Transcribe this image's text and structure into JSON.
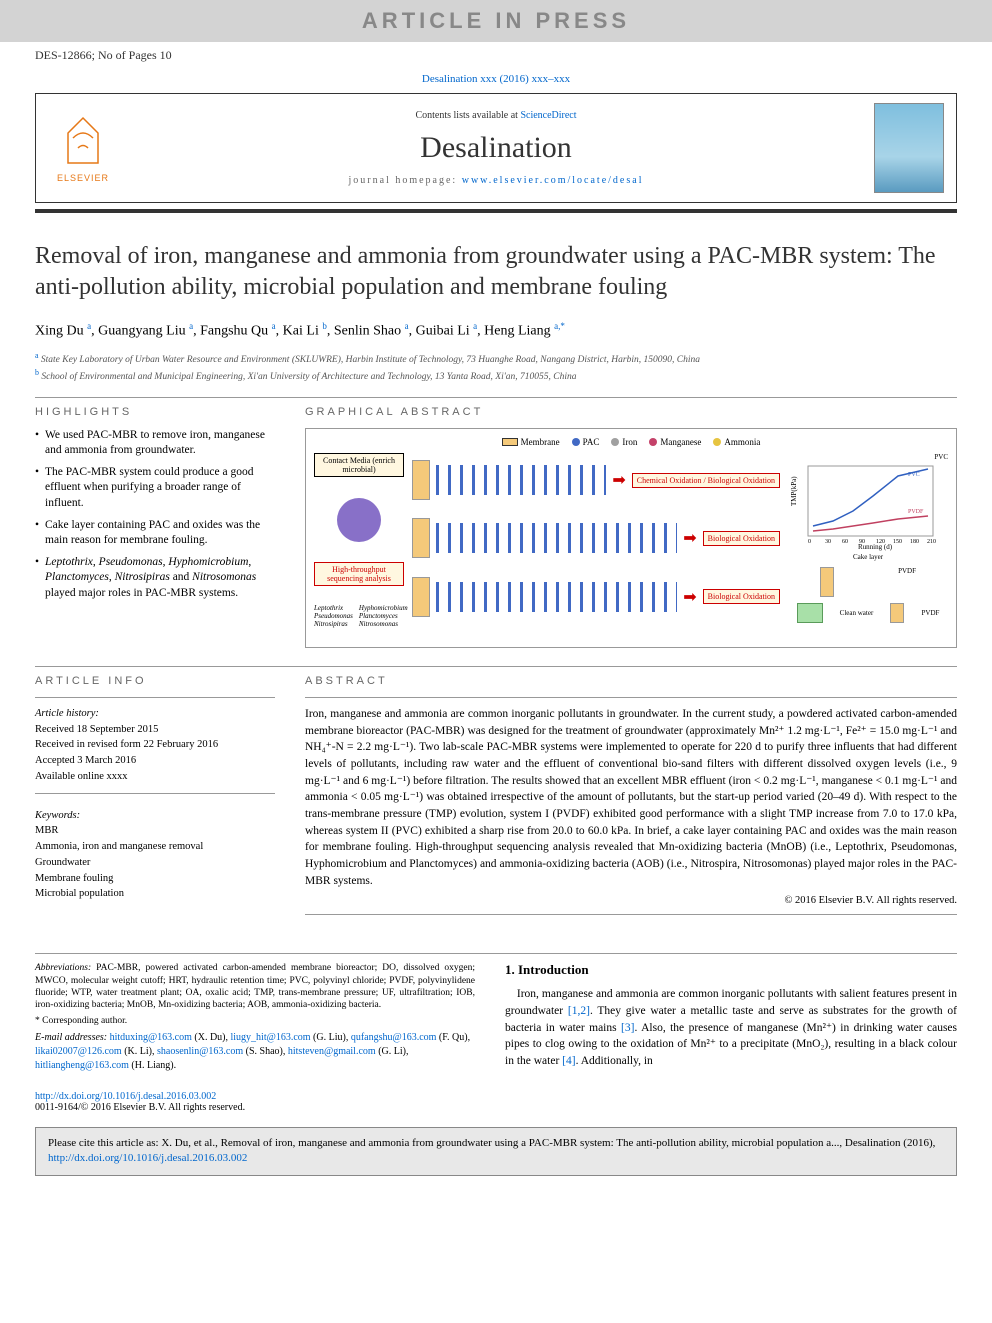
{
  "banner": {
    "text": "ARTICLE IN PRESS",
    "bg": "#d3d3d3",
    "color": "#888888",
    "fontsize": 22
  },
  "doc_id": "DES-12866; No of Pages 10",
  "doi_line": "Desalination xxx (2016) xxx–xxx",
  "header": {
    "contents_prefix": "Contents lists available at ",
    "contents_link": "ScienceDirect",
    "journal": "Desalination",
    "homepage_prefix": "journal homepage: ",
    "homepage_link": "www.elsevier.com/locate/desal",
    "publisher": "ELSEVIER",
    "logo_color": "#e67817",
    "journal_fontsize": 30
  },
  "title": "Removal of iron, manganese and ammonia from groundwater using a PAC-MBR system: The anti-pollution ability, microbial population and membrane fouling",
  "authors_html": "Xing Du <sup>a</sup>, Guangyang Liu <sup>a</sup>, Fangshu Qu <sup>a</sup>, Kai Li <sup>b</sup>, Senlin Shao <sup>a</sup>, Guibai Li <sup>a</sup>, Heng Liang <sup>a,*</sup>",
  "affiliations": {
    "a": "State Key Laboratory of Urban Water Resource and Environment (SKLUWRE), Harbin Institute of Technology, 73 Huanghe Road, Nangang District, Harbin, 150090, China",
    "b": "School of Environmental and Municipal Engineering, Xi'an University of Architecture and Technology, 13 Yanta Road, Xi'an, 710055, China"
  },
  "highlights": {
    "heading": "HIGHLIGHTS",
    "items": [
      "We used PAC-MBR to remove iron, manganese and ammonia from groundwater.",
      "The PAC-MBR system could produce a good effluent when purifying a broader range of influent.",
      "Cake layer containing PAC and oxides was the main reason for membrane fouling.",
      "<em>Leptothrix</em>, <em>Pseudomonas</em>, <em>Hyphomicrobium</em>, <em>Planctomyces</em>, <em>Nitrosipiras</em> and <em>Nitrosomonas</em> played major roles in PAC-MBR systems."
    ]
  },
  "graphical_abstract": {
    "heading": "GRAPHICAL ABSTRACT",
    "legend": [
      {
        "label": "Membrane",
        "color": "#f4c97a",
        "shape": "rect"
      },
      {
        "label": "PAC",
        "color": "#4169c4",
        "shape": "circle"
      },
      {
        "label": "Iron",
        "color": "#a0a0a0",
        "shape": "dot"
      },
      {
        "label": "Manganese",
        "color": "#c44169",
        "shape": "dot"
      },
      {
        "label": "Ammonia",
        "color": "#e6c441",
        "shape": "dot"
      }
    ],
    "left_box1": "Contact Media\n(enrich microbial)",
    "left_box2": "High-throughput\nsequencing analysis",
    "row1": [
      "Chemical Oxidation",
      "Biological Oxidation"
    ],
    "row2": "Biological Oxidation",
    "row3": "Biological Oxidation",
    "right_labels": [
      "PVC",
      "Cake layer",
      "PVDF",
      "Clean water",
      "PVDF"
    ],
    "chart": {
      "type": "line",
      "xlabel": "Running (d)",
      "ylabel": "TMP(kPa)",
      "xlim": [
        0,
        210
      ],
      "ylim": [
        0,
        60
      ],
      "xticks": [
        0,
        30,
        60,
        90,
        120,
        150,
        180,
        210
      ],
      "series": [
        {
          "name": "PVC",
          "color": "#3060c0"
        },
        {
          "name": "PVDF",
          "color": "#c04060"
        }
      ]
    },
    "taxa_left": [
      "Leptothrix",
      "Pseudomonas",
      "Nitrosipiras"
    ],
    "taxa_right": [
      "Hyphomicrobium",
      "Planctomyces",
      "Nitrosomonas"
    ]
  },
  "article_info": {
    "heading": "ARTICLE INFO",
    "history_label": "Article history:",
    "history": [
      "Received 18 September 2015",
      "Received in revised form 22 February 2016",
      "Accepted 3 March 2016",
      "Available online xxxx"
    ],
    "keywords_label": "Keywords:",
    "keywords": [
      "MBR",
      "Ammonia, iron and manganese removal",
      "Groundwater",
      "Membrane fouling",
      "Microbial population"
    ]
  },
  "abstract": {
    "heading": "ABSTRACT",
    "text": "Iron, manganese and ammonia are common inorganic pollutants in groundwater. In the current study, a powdered activated carbon-amended membrane bioreactor (PAC-MBR) was designed for the treatment of groundwater (approximately Mn²⁺ 1.2 mg·L⁻¹, Fe²⁺ = 15.0 mg·L⁻¹ and NH₄⁺-N = 2.2 mg·L⁻¹). Two lab-scale PAC-MBR systems were implemented to operate for 220 d to purify three influents that had different levels of pollutants, including raw water and the effluent of conventional bio-sand filters with different dissolved oxygen levels (i.e., 9 mg·L⁻¹ and 6 mg·L⁻¹) before filtration. The results showed that an excellent MBR effluent (iron < 0.2 mg·L⁻¹, manganese < 0.1 mg·L⁻¹ and ammonia < 0.05 mg·L⁻¹) was obtained irrespective of the amount of pollutants, but the start-up period varied (20–49 d). With respect to the trans-membrane pressure (TMP) evolution, system I (PVDF) exhibited good performance with a slight TMP increase from 7.0 to 17.0 kPa, whereas system II (PVC) exhibited a sharp rise from 20.0 to 60.0 kPa. In brief, a cake layer containing PAC and oxides was the main reason for membrane fouling. High-throughput sequencing analysis revealed that Mn-oxidizing bacteria (MnOB) (i.e., Leptothrix, Pseudomonas, Hyphomicrobium and Planctomyces) and ammonia-oxidizing bacteria (AOB) (i.e., Nitrospira, Nitrosomonas) played major roles in the PAC-MBR systems.",
    "copyright": "© 2016 Elsevier B.V. All rights reserved."
  },
  "footnotes": {
    "abbreviations_label": "Abbreviations:",
    "abbreviations": "PAC-MBR, powered activated carbon-amended membrane bioreactor; DO, dissolved oxygen; MWCO, molecular weight cutoff; HRT, hydraulic retention time; PVC, polyvinyl chloride; PVDF, polyvinylidene fluoride; WTP, water treatment plant; OA, oxalic acid; TMP, trans-membrane pressure; UF, ultrafiltration; IOB, iron-oxidizing bacteria; MnOB, Mn-oxidizing bacteria; AOB, ammonia-oxidizing bacteria.",
    "corresponding": "* Corresponding author.",
    "emails_label": "E-mail addresses:",
    "emails": [
      {
        "addr": "hitduxing@163.com",
        "name": "(X. Du)"
      },
      {
        "addr": "liugy_hit@163.com",
        "name": "(G. Liu)"
      },
      {
        "addr": "qufangshu@163.com",
        "name": "(F. Qu)"
      },
      {
        "addr": "likai02007@126.com",
        "name": "(K. Li)"
      },
      {
        "addr": "shaosenlin@163.com",
        "name": "(S. Shao)"
      },
      {
        "addr": "hitsteven@gmail.com",
        "name": "(G. Li)"
      },
      {
        "addr": "hitliangheng@163.com",
        "name": "(H. Liang)"
      }
    ]
  },
  "introduction": {
    "heading": "1. Introduction",
    "text": "Iron, manganese and ammonia are common inorganic pollutants with salient features present in groundwater [1,2]. They give water a metallic taste and serve as substrates for the growth of bacteria in water mains [3]. Also, the presence of manganese (Mn²⁺) in drinking water causes pipes to clog owing to the oxidation of Mn²⁺ to a precipitate (MnO₂), resulting in a black colour in the water [4]. Additionally, in"
  },
  "doi_footer": {
    "url": "http://dx.doi.org/10.1016/j.desal.2016.03.002",
    "issn": "0011-9164/© 2016 Elsevier B.V. All rights reserved."
  },
  "cite_box": {
    "prefix": "Please cite this article as: X. Du, et al., Removal of iron, manganese and ammonia from groundwater using a PAC-MBR system: The anti-pollution ability, microbial population a..., Desalination (2016), ",
    "url": "http://dx.doi.org/10.1016/j.desal.2016.03.002"
  },
  "colors": {
    "link": "#0066cc",
    "text": "#000000",
    "heading_gray": "#666666",
    "affil_gray": "#555555"
  }
}
